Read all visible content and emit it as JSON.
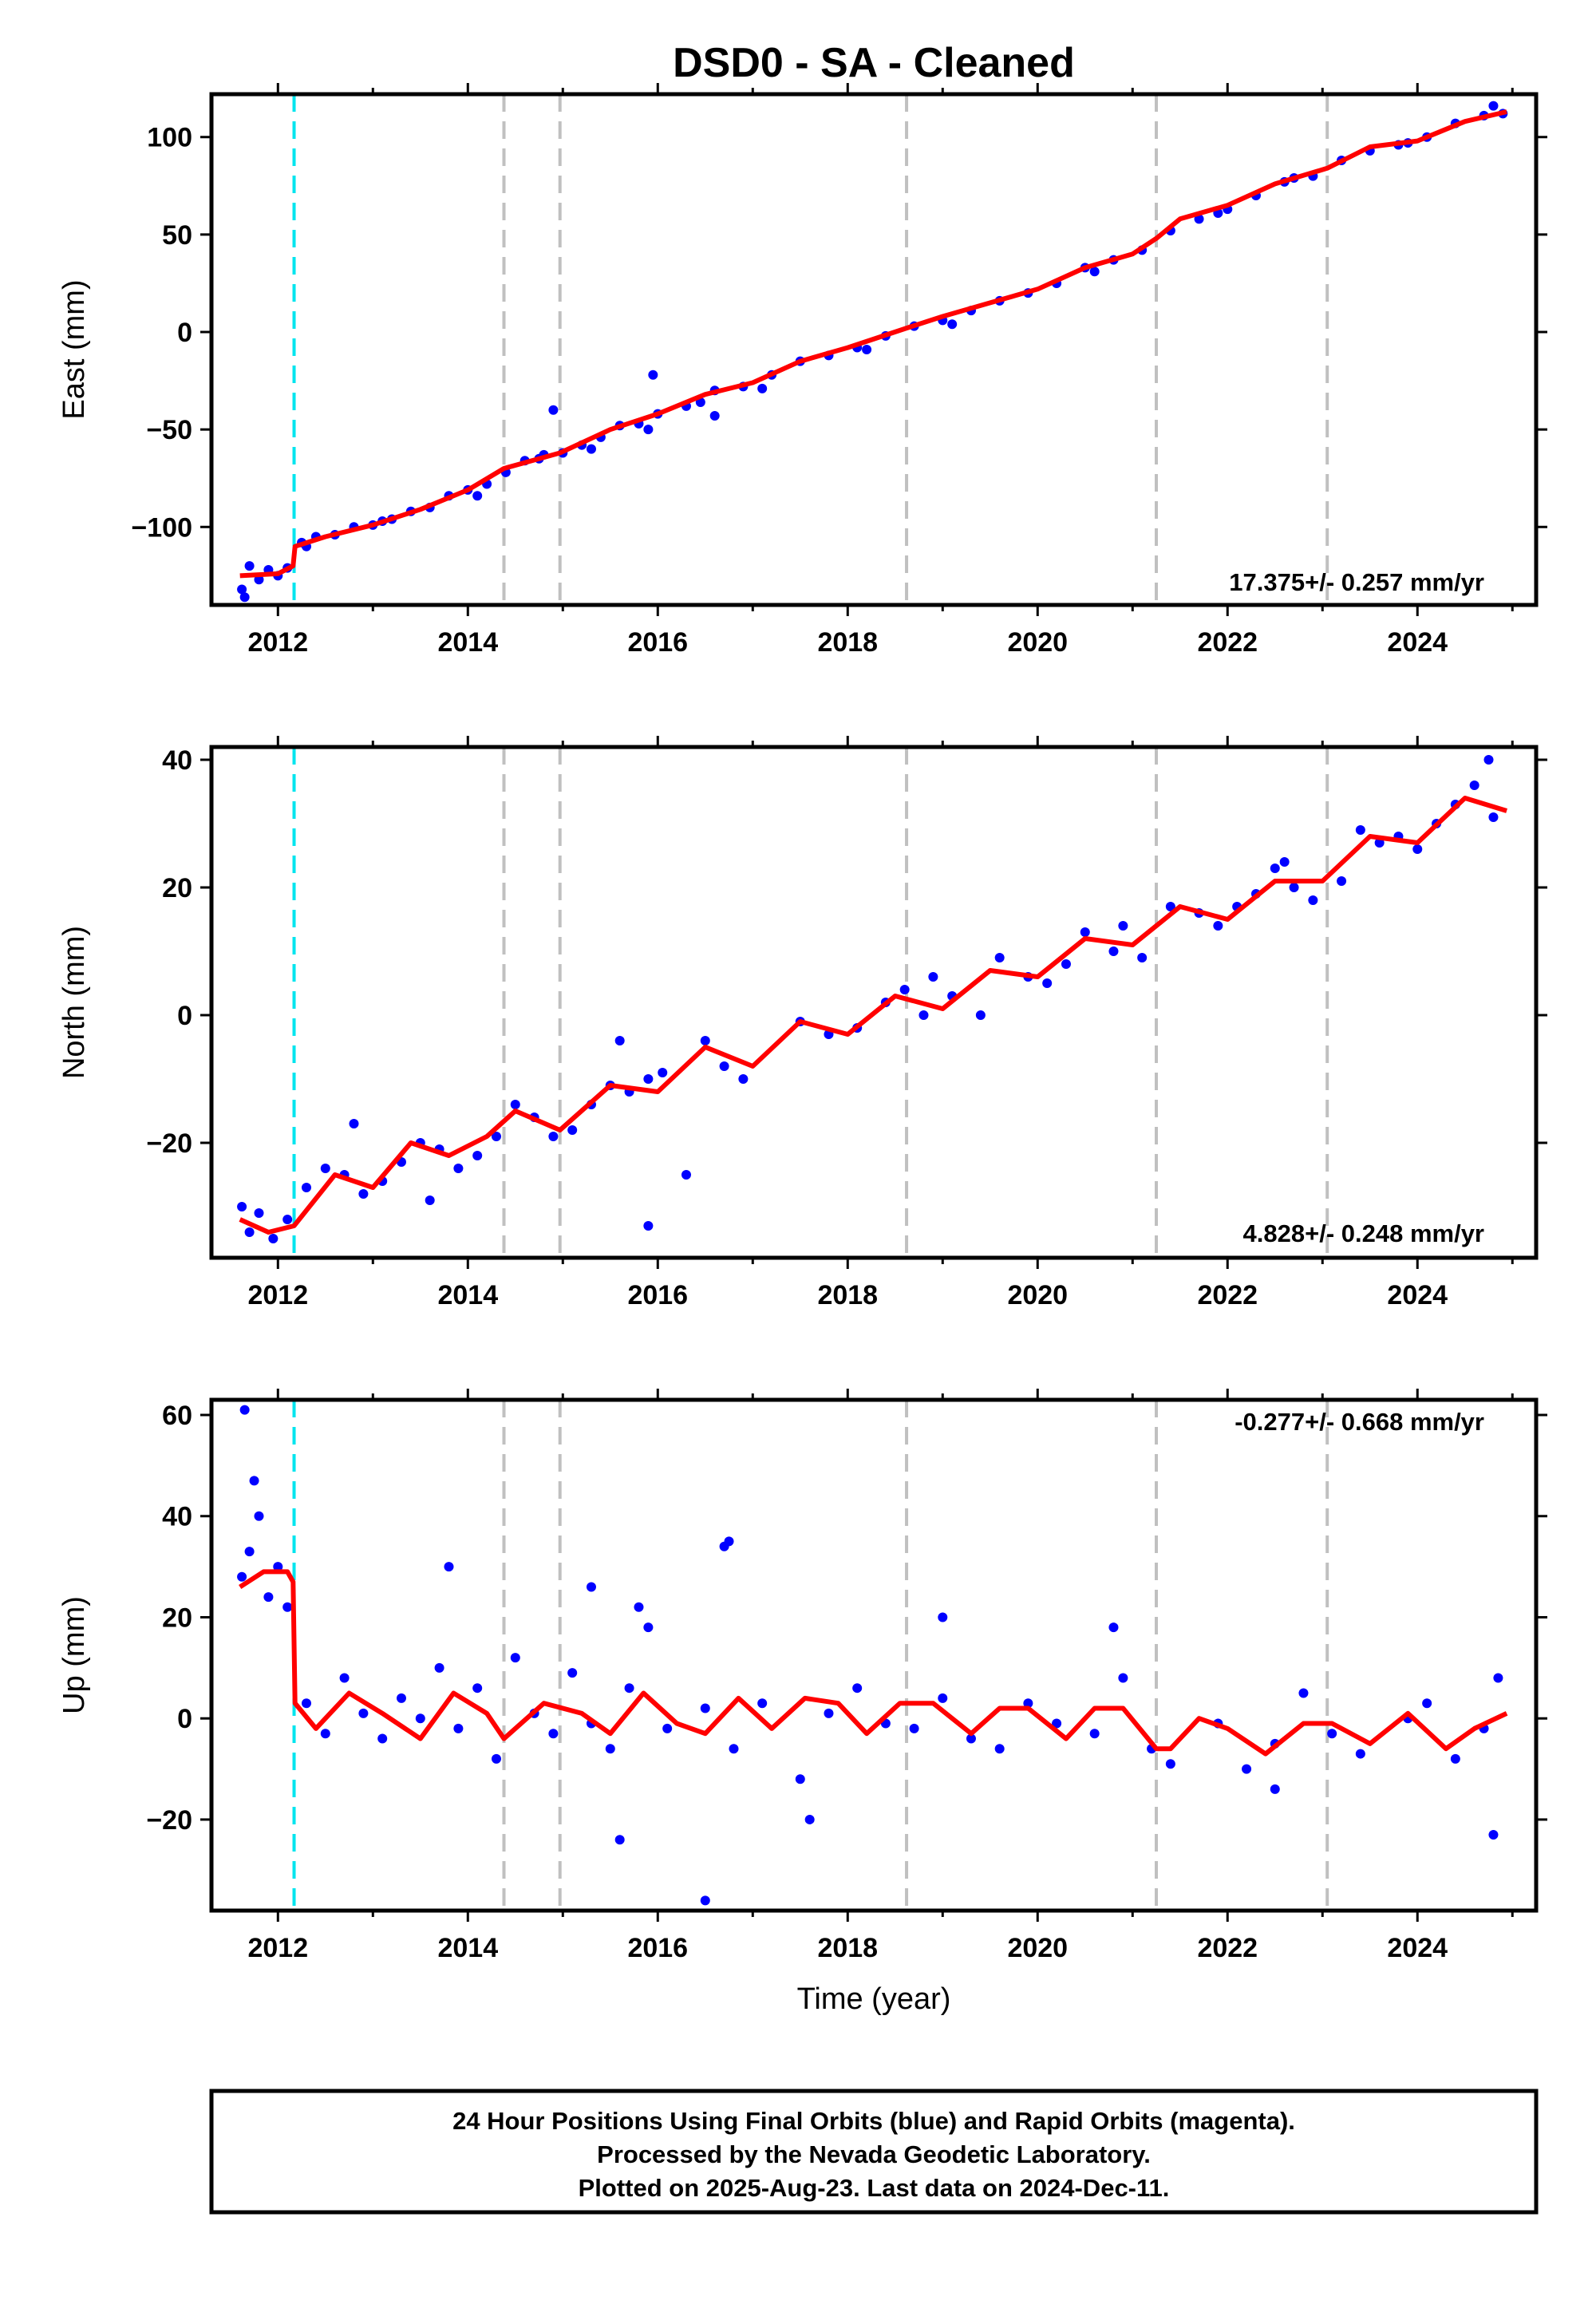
{
  "title": "DSD0  - SA - Cleaned",
  "xlabel": "Time (year)",
  "footer": [
    "24 Hour Positions Using Final Orbits (blue) and Rapid Orbits (magenta).",
    "Processed by the Nevada Geodetic Laboratory.",
    "Plotted on 2025-Aug-23. Last data on 2024-Dec-11."
  ],
  "colors": {
    "points": "#0000ff",
    "fit": "#ff0000",
    "event_main": "#00e5ee",
    "event_other": "#c0c0c0"
  },
  "chart_data": [
    {
      "type": "scatter",
      "ylabel": "East (mm)",
      "rate_text": "17.375+/- 0.257 mm/yr",
      "xlim": [
        2011.3,
        2025.25
      ],
      "ylim": [
        -140,
        122
      ],
      "xticks": [
        2012,
        2014,
        2016,
        2018,
        2020,
        2022,
        2024
      ],
      "xtick_labels": [
        "2012",
        "2014",
        "2016",
        "2018",
        "2020",
        "2022",
        "2024"
      ],
      "yticks": [
        -100,
        -50,
        0,
        50,
        100
      ],
      "ytick_labels": [
        "−100",
        "−50",
        "0",
        "50",
        "100"
      ],
      "events_main": [
        2012.17
      ],
      "events_other": [
        2014.38,
        2014.97,
        2018.62,
        2021.25,
        2023.05
      ],
      "fit": {
        "x": [
          2011.6,
          2012.0,
          2012.16,
          2012.18,
          2012.5,
          2013.0,
          2013.5,
          2014.0,
          2014.38,
          2014.97,
          2015.5,
          2016.0,
          2016.5,
          2017.0,
          2017.5,
          2018.0,
          2018.62,
          2019.0,
          2019.5,
          2020.0,
          2020.5,
          2021.0,
          2021.25,
          2021.5,
          2022.0,
          2022.5,
          2023.05,
          2023.5,
          2024.0,
          2024.5,
          2024.94
        ],
        "y": [
          -125,
          -124,
          -120,
          -110,
          -105,
          -99,
          -91,
          -81,
          -70,
          -62,
          -50,
          -42,
          -32,
          -26,
          -15,
          -8,
          2,
          8,
          15,
          22,
          33,
          40,
          48,
          58,
          65,
          76,
          84,
          95,
          98,
          108,
          113
        ]
      },
      "points": {
        "x": [
          2011.62,
          2011.7,
          2011.8,
          2011.9,
          2012.0,
          2012.1,
          2012.25,
          2012.4,
          2012.6,
          2012.8,
          2013.0,
          2013.2,
          2013.4,
          2013.6,
          2013.8,
          2014.0,
          2014.2,
          2014.4,
          2014.6,
          2014.8,
          2015.0,
          2015.2,
          2015.4,
          2015.6,
          2015.8,
          2016.0,
          2016.3,
          2016.6,
          2016.9,
          2017.2,
          2017.5,
          2017.8,
          2018.1,
          2018.4,
          2018.7,
          2019.0,
          2019.3,
          2019.6,
          2019.9,
          2020.2,
          2020.5,
          2020.8,
          2021.1,
          2021.4,
          2021.7,
          2022.0,
          2022.3,
          2022.6,
          2022.9,
          2023.2,
          2023.5,
          2023.8,
          2024.1,
          2024.4,
          2024.7,
          2024.9,
          2011.65,
          2012.3,
          2013.1,
          2014.1,
          2014.75,
          2015.3,
          2015.9,
          2016.45,
          2017.1,
          2018.2,
          2019.1,
          2020.6,
          2021.9,
          2022.7,
          2023.9,
          2024.8,
          2014.9,
          2015.95,
          2016.6
        ],
        "y": [
          -132,
          -120,
          -127,
          -122,
          -125,
          -121,
          -108,
          -105,
          -104,
          -100,
          -99,
          -96,
          -92,
          -90,
          -84,
          -81,
          -78,
          -72,
          -66,
          -63,
          -62,
          -58,
          -54,
          -48,
          -47,
          -42,
          -38,
          -30,
          -28,
          -22,
          -15,
          -12,
          -8,
          -2,
          3,
          6,
          11,
          16,
          20,
          25,
          33,
          37,
          42,
          52,
          58,
          63,
          70,
          77,
          80,
          88,
          93,
          96,
          100,
          107,
          111,
          112,
          -136,
          -110,
          -97,
          -84,
          -65,
          -60,
          -50,
          -36,
          -29,
          -9,
          4,
          31,
          61,
          79,
          97,
          116,
          -40,
          -22,
          -43
        ]
      }
    },
    {
      "type": "scatter",
      "ylabel": "North (mm)",
      "rate_text": "4.828+/- 0.248 mm/yr",
      "xlim": [
        2011.3,
        2025.25
      ],
      "ylim": [
        -38,
        42
      ],
      "xticks": [
        2012,
        2014,
        2016,
        2018,
        2020,
        2022,
        2024
      ],
      "xtick_labels": [
        "2012",
        "2014",
        "2016",
        "2018",
        "2020",
        "2022",
        "2024"
      ],
      "yticks": [
        -20,
        0,
        20,
        40
      ],
      "ytick_labels": [
        "−20",
        "0",
        "20",
        "40"
      ],
      "events_main": [
        2012.17
      ],
      "events_other": [
        2014.38,
        2014.97,
        2018.62,
        2021.25,
        2023.05
      ],
      "fit": {
        "x": [
          2011.6,
          2011.9,
          2012.17,
          2012.6,
          2013.0,
          2013.4,
          2013.8,
          2014.2,
          2014.5,
          2014.97,
          2015.5,
          2016.0,
          2016.5,
          2017.0,
          2017.5,
          2018.0,
          2018.5,
          2019.0,
          2019.5,
          2020.0,
          2020.5,
          2021.0,
          2021.5,
          2022.0,
          2022.5,
          2023.0,
          2023.5,
          2024.0,
          2024.5,
          2024.94
        ],
        "y": [
          -32,
          -34,
          -33,
          -25,
          -27,
          -20,
          -22,
          -19,
          -15,
          -18,
          -11,
          -12,
          -5,
          -8,
          -1,
          -3,
          3,
          1,
          7,
          6,
          12,
          11,
          17,
          15,
          21,
          21,
          28,
          27,
          34,
          32
        ]
      },
      "points": {
        "x": [
          2011.62,
          2011.7,
          2011.8,
          2011.95,
          2012.1,
          2012.3,
          2012.5,
          2012.7,
          2012.9,
          2013.1,
          2013.3,
          2013.5,
          2013.7,
          2013.9,
          2014.1,
          2014.3,
          2014.5,
          2014.7,
          2014.9,
          2015.1,
          2015.3,
          2015.5,
          2015.7,
          2015.9,
          2016.05,
          2016.5,
          2016.7,
          2016.9,
          2017.5,
          2017.8,
          2018.1,
          2018.4,
          2018.6,
          2018.8,
          2019.1,
          2019.4,
          2019.6,
          2019.9,
          2020.1,
          2020.3,
          2020.5,
          2020.8,
          2021.1,
          2021.4,
          2021.7,
          2021.9,
          2022.1,
          2022.3,
          2022.5,
          2022.7,
          2022.9,
          2023.2,
          2023.4,
          2023.6,
          2023.8,
          2024.0,
          2024.2,
          2024.4,
          2024.6,
          2024.8,
          2015.9,
          2016.3,
          2012.8,
          2013.6,
          2015.6,
          2018.9,
          2020.9,
          2022.6,
          2024.75
        ],
        "y": [
          -30,
          -34,
          -31,
          -35,
          -32,
          -27,
          -24,
          -25,
          -28,
          -26,
          -23,
          -20,
          -21,
          -24,
          -22,
          -19,
          -14,
          -16,
          -19,
          -18,
          -14,
          -11,
          -12,
          -10,
          -9,
          -4,
          -8,
          -10,
          -1,
          -3,
          -2,
          2,
          4,
          0,
          3,
          0,
          9,
          6,
          5,
          8,
          13,
          10,
          9,
          17,
          16,
          14,
          17,
          19,
          23,
          20,
          18,
          21,
          29,
          27,
          28,
          26,
          30,
          33,
          36,
          31,
          -33,
          -25,
          -17,
          -29,
          -4,
          6,
          14,
          24,
          40
        ]
      }
    },
    {
      "type": "scatter",
      "ylabel": "Up (mm)",
      "rate_text": "-0.277+/- 0.668 mm/yr",
      "xlim": [
        2011.3,
        2025.25
      ],
      "ylim": [
        -38,
        63
      ],
      "xticks": [
        2012,
        2014,
        2016,
        2018,
        2020,
        2022,
        2024
      ],
      "xtick_labels": [
        "2012",
        "2014",
        "2016",
        "2018",
        "2020",
        "2022",
        "2024"
      ],
      "yticks": [
        -20,
        0,
        20,
        40,
        60
      ],
      "ytick_labels": [
        "−20",
        "0",
        "20",
        "40",
        "60"
      ],
      "events_main": [
        2012.17
      ],
      "events_other": [
        2014.38,
        2014.97,
        2018.62,
        2021.25,
        2023.05
      ],
      "fit": {
        "x": [
          2011.6,
          2011.85,
          2012.1,
          2012.16,
          2012.18,
          2012.4,
          2012.75,
          2013.1,
          2013.5,
          2013.85,
          2014.2,
          2014.38,
          2014.8,
          2015.2,
          2015.5,
          2015.85,
          2016.2,
          2016.5,
          2016.85,
          2017.2,
          2017.55,
          2017.9,
          2018.2,
          2018.55,
          2018.9,
          2019.3,
          2019.6,
          2019.9,
          2020.3,
          2020.6,
          2020.9,
          2021.25,
          2021.4,
          2021.7,
          2022.0,
          2022.4,
          2022.8,
          2023.1,
          2023.5,
          2023.9,
          2024.3,
          2024.6,
          2024.94
        ],
        "y": [
          26,
          29,
          29,
          27,
          3,
          -2,
          5,
          1,
          -4,
          5,
          1,
          -4,
          3,
          1,
          -3,
          5,
          -1,
          -3,
          4,
          -2,
          4,
          3,
          -3,
          3,
          3,
          -3,
          2,
          2,
          -4,
          2,
          2,
          -6,
          -6,
          0,
          -2,
          -7,
          -1,
          -1,
          -5,
          1,
          -6,
          -2,
          1
        ]
      },
      "points": {
        "x": [
          2011.62,
          2011.7,
          2011.8,
          2011.9,
          2012.0,
          2012.1,
          2011.65,
          2011.75,
          2012.3,
          2012.5,
          2012.7,
          2012.9,
          2013.1,
          2013.3,
          2013.5,
          2013.7,
          2013.9,
          2014.1,
          2014.3,
          2014.5,
          2014.7,
          2014.9,
          2015.1,
          2015.3,
          2015.5,
          2015.7,
          2015.9,
          2016.1,
          2016.5,
          2016.8,
          2017.1,
          2017.5,
          2017.8,
          2018.1,
          2018.4,
          2018.7,
          2019.0,
          2019.3,
          2019.6,
          2019.9,
          2020.2,
          2020.6,
          2020.9,
          2021.2,
          2021.4,
          2021.9,
          2022.2,
          2022.5,
          2022.8,
          2023.1,
          2023.4,
          2023.9,
          2024.1,
          2024.4,
          2024.7,
          2024.85,
          2015.8,
          2016.5,
          2016.7,
          2016.75,
          2013.8,
          2015.3,
          2015.6,
          2017.6,
          2019.0,
          2020.8,
          2022.5,
          2024.8
        ],
        "y": [
          28,
          33,
          40,
          24,
          30,
          22,
          61,
          47,
          3,
          -3,
          8,
          1,
          -4,
          4,
          0,
          10,
          -2,
          6,
          -8,
          12,
          1,
          -3,
          9,
          -1,
          -6,
          6,
          18,
          -2,
          2,
          -6,
          3,
          -12,
          1,
          6,
          -1,
          -2,
          4,
          -4,
          -6,
          3,
          -1,
          -3,
          8,
          -6,
          -9,
          -1,
          -10,
          -5,
          5,
          -3,
          -7,
          0,
          3,
          -8,
          -2,
          8,
          22,
          -36,
          34,
          35,
          30,
          26,
          -24,
          -20,
          20,
          18,
          -14,
          -23
        ]
      }
    }
  ]
}
